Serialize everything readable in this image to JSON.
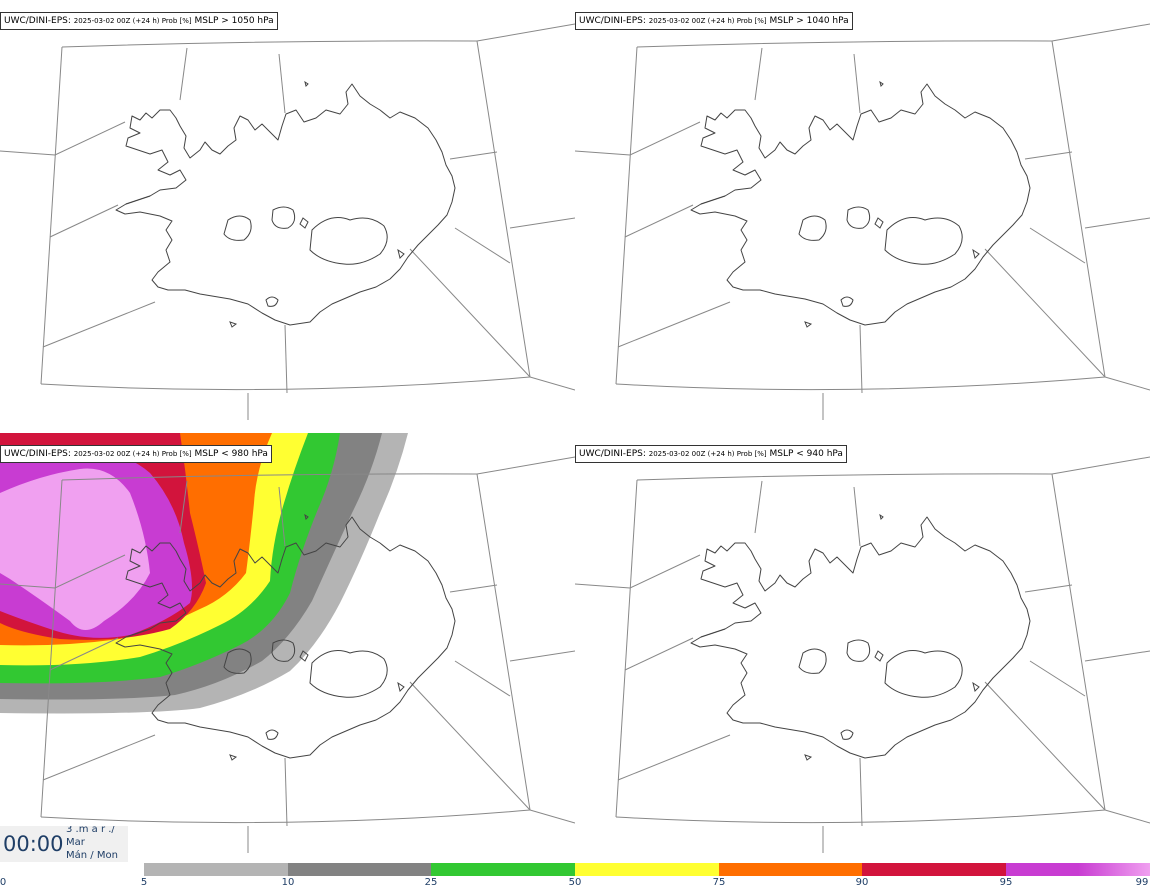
{
  "panels": [
    {
      "id": "p1",
      "model": "UWC/DINI-EPS",
      "meta": "2025-03-02 00Z (+24 h) Prob [%]",
      "param": "MSLP > 1050 hPa",
      "filled": false
    },
    {
      "id": "p2",
      "model": "UWC/DINI-EPS",
      "meta": "2025-03-02 00Z (+24 h) Prob [%]",
      "param": "MSLP > 1040 hPa",
      "filled": false
    },
    {
      "id": "p3",
      "model": "UWC/DINI-EPS",
      "meta": "2025-03-02 00Z (+24 h) Prob [%]",
      "param": "MSLP < 980 hPa",
      "filled": true
    },
    {
      "id": "p4",
      "model": "UWC/DINI-EPS",
      "meta": "2025-03-02 00Z (+24 h) Prob [%]",
      "param": "MSLP < 940 hPa",
      "filled": false
    }
  ],
  "time": {
    "clock": "00:00",
    "line1": "3 .m a r ./",
    "line2": "Mar",
    "line3": "Mán / Mon"
  },
  "legend": {
    "ticks": [
      "0",
      "5",
      "10",
      "25",
      "50",
      "75",
      "90",
      "95",
      "99"
    ],
    "colors": [
      "#b4b4b4",
      "#828282",
      "#32c832",
      "#ffff32",
      "#ff6e00",
      "#d2143c",
      "#c83cd2",
      "#f0a0f0"
    ]
  },
  "colors": {
    "coast": "#444444",
    "grid": "#888888",
    "frame": "#333333"
  }
}
